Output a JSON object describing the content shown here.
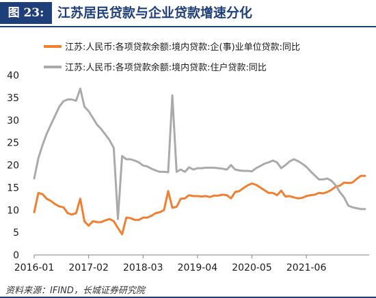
{
  "header": {
    "figure_label": "图 23:",
    "title": "江苏居民贷款与企业贷款增速分化"
  },
  "source": "资料来源：IFIND，长城证券研究院",
  "chart_data": {
    "type": "line",
    "title": "江苏居民贷款与企业贷款增速分化",
    "xlabel": "",
    "ylabel": "",
    "ylim": [
      0,
      40
    ],
    "yticks": [
      0,
      5,
      10,
      15,
      20,
      25,
      30,
      35,
      40
    ],
    "xlim": [
      "2016-01",
      "2022-09"
    ],
    "xticks": [
      "2016-01",
      "2017-02",
      "2018-03",
      "2019-04",
      "2020-05",
      "2021-06"
    ],
    "grid": false,
    "legend_position": "top-left",
    "series": [
      {
        "name": "江苏:人民币:各项贷款余额:境内贷款:企(事)业单位贷款:同比",
        "color": "#f07f30",
        "x": [
          "2016-01",
          "2016-02",
          "2016-03",
          "2016-04",
          "2016-05",
          "2016-06",
          "2016-07",
          "2016-08",
          "2016-09",
          "2016-10",
          "2016-11",
          "2016-12",
          "2017-01",
          "2017-02",
          "2017-03",
          "2017-04",
          "2017-05",
          "2017-06",
          "2017-07",
          "2017-08",
          "2017-09",
          "2017-10",
          "2017-11",
          "2017-12",
          "2018-01",
          "2018-02",
          "2018-03",
          "2018-04",
          "2018-05",
          "2018-06",
          "2018-07",
          "2018-08",
          "2018-09",
          "2018-10",
          "2018-11",
          "2018-12",
          "2019-01",
          "2019-02",
          "2019-03",
          "2019-04",
          "2019-05",
          "2019-06",
          "2019-07",
          "2019-08",
          "2019-09",
          "2019-10",
          "2019-11",
          "2019-12",
          "2020-01",
          "2020-02",
          "2020-03",
          "2020-04",
          "2020-05",
          "2020-06",
          "2020-07",
          "2020-08",
          "2020-09",
          "2020-10",
          "2020-11",
          "2020-12",
          "2021-01",
          "2021-02",
          "2021-03",
          "2021-04",
          "2021-05",
          "2021-06",
          "2021-07",
          "2021-08",
          "2021-09",
          "2021-10",
          "2021-11",
          "2021-12",
          "2022-01",
          "2022-02",
          "2022-03",
          "2022-04",
          "2022-05",
          "2022-06",
          "2022-07",
          "2022-08"
        ],
        "values": [
          9.5,
          13.8,
          13.5,
          12.5,
          12.0,
          11.3,
          10.8,
          10.6,
          9.3,
          9.0,
          9.3,
          12.5,
          7.5,
          6.5,
          7.5,
          7.3,
          7.3,
          7.7,
          8.0,
          7.5,
          6.0,
          4.6,
          8.3,
          8.2,
          7.8,
          7.8,
          8.3,
          8.3,
          8.7,
          9.3,
          9.5,
          10.0,
          14.2,
          10.5,
          10.7,
          12.5,
          12.6,
          13.3,
          13.1,
          13.1,
          13.0,
          13.1,
          12.9,
          13.2,
          13.2,
          13.4,
          13.3,
          12.6,
          14.0,
          14.2,
          14.9,
          15.5,
          15.9,
          15.6,
          15.0,
          14.4,
          13.8,
          13.8,
          13.3,
          14.3,
          13.0,
          13.1,
          12.8,
          12.6,
          12.7,
          13.1,
          13.3,
          13.4,
          13.8,
          13.7,
          14.0,
          14.5,
          15.2,
          15.4,
          16.1,
          16.0,
          16.1,
          16.9,
          17.6,
          17.6
        ]
      },
      {
        "name": "江苏:人民币:各项贷款余额:境内贷款:住户贷款:同比",
        "color": "#aaaaaa",
        "x": [
          "2016-01",
          "2016-02",
          "2016-03",
          "2016-04",
          "2016-05",
          "2016-06",
          "2016-07",
          "2016-08",
          "2016-09",
          "2016-10",
          "2016-11",
          "2016-12",
          "2017-01",
          "2017-02",
          "2017-03",
          "2017-04",
          "2017-05",
          "2017-06",
          "2017-07",
          "2017-08",
          "2017-09",
          "2017-10",
          "2017-11",
          "2017-12",
          "2018-01",
          "2018-02",
          "2018-03",
          "2018-04",
          "2018-05",
          "2018-06",
          "2018-07",
          "2018-08",
          "2018-09",
          "2018-10",
          "2018-11",
          "2018-12",
          "2019-01",
          "2019-02",
          "2019-03",
          "2019-04",
          "2019-05",
          "2019-06",
          "2019-07",
          "2019-08",
          "2019-09",
          "2019-10",
          "2019-11",
          "2019-12",
          "2020-01",
          "2020-02",
          "2020-03",
          "2020-04",
          "2020-05",
          "2020-06",
          "2020-07",
          "2020-08",
          "2020-09",
          "2020-10",
          "2020-11",
          "2020-12",
          "2021-01",
          "2021-02",
          "2021-03",
          "2021-04",
          "2021-05",
          "2021-06",
          "2021-07",
          "2021-08",
          "2021-09",
          "2021-10",
          "2021-11",
          "2021-12",
          "2022-01",
          "2022-02",
          "2022-03",
          "2022-04",
          "2022-05",
          "2022-06",
          "2022-07",
          "2022-08"
        ],
        "values": [
          17.0,
          21.5,
          24.5,
          27.0,
          29.0,
          31.0,
          33.0,
          34.2,
          34.6,
          34.6,
          34.3,
          37.0,
          33.0,
          32.0,
          30.5,
          29.0,
          28.0,
          26.8,
          25.5,
          23.8,
          8.0,
          22.0,
          21.3,
          21.3,
          21.0,
          20.6,
          19.9,
          19.7,
          19.2,
          18.8,
          18.5,
          18.5,
          18.4,
          35.5,
          18.5,
          19.0,
          18.5,
          19.5,
          19.0,
          19.3,
          19.3,
          19.4,
          19.4,
          19.4,
          19.3,
          19.2,
          19.0,
          20.0,
          19.0,
          18.8,
          18.7,
          18.7,
          18.6,
          19.3,
          19.8,
          20.3,
          20.6,
          21.0,
          20.6,
          19.3,
          20.0,
          20.8,
          21.3,
          20.9,
          20.3,
          19.6,
          18.6,
          17.7,
          16.8,
          16.8,
          17.0,
          16.5,
          15.5,
          14.0,
          12.8,
          11.0,
          10.6,
          10.4,
          10.2,
          10.2
        ]
      }
    ]
  }
}
